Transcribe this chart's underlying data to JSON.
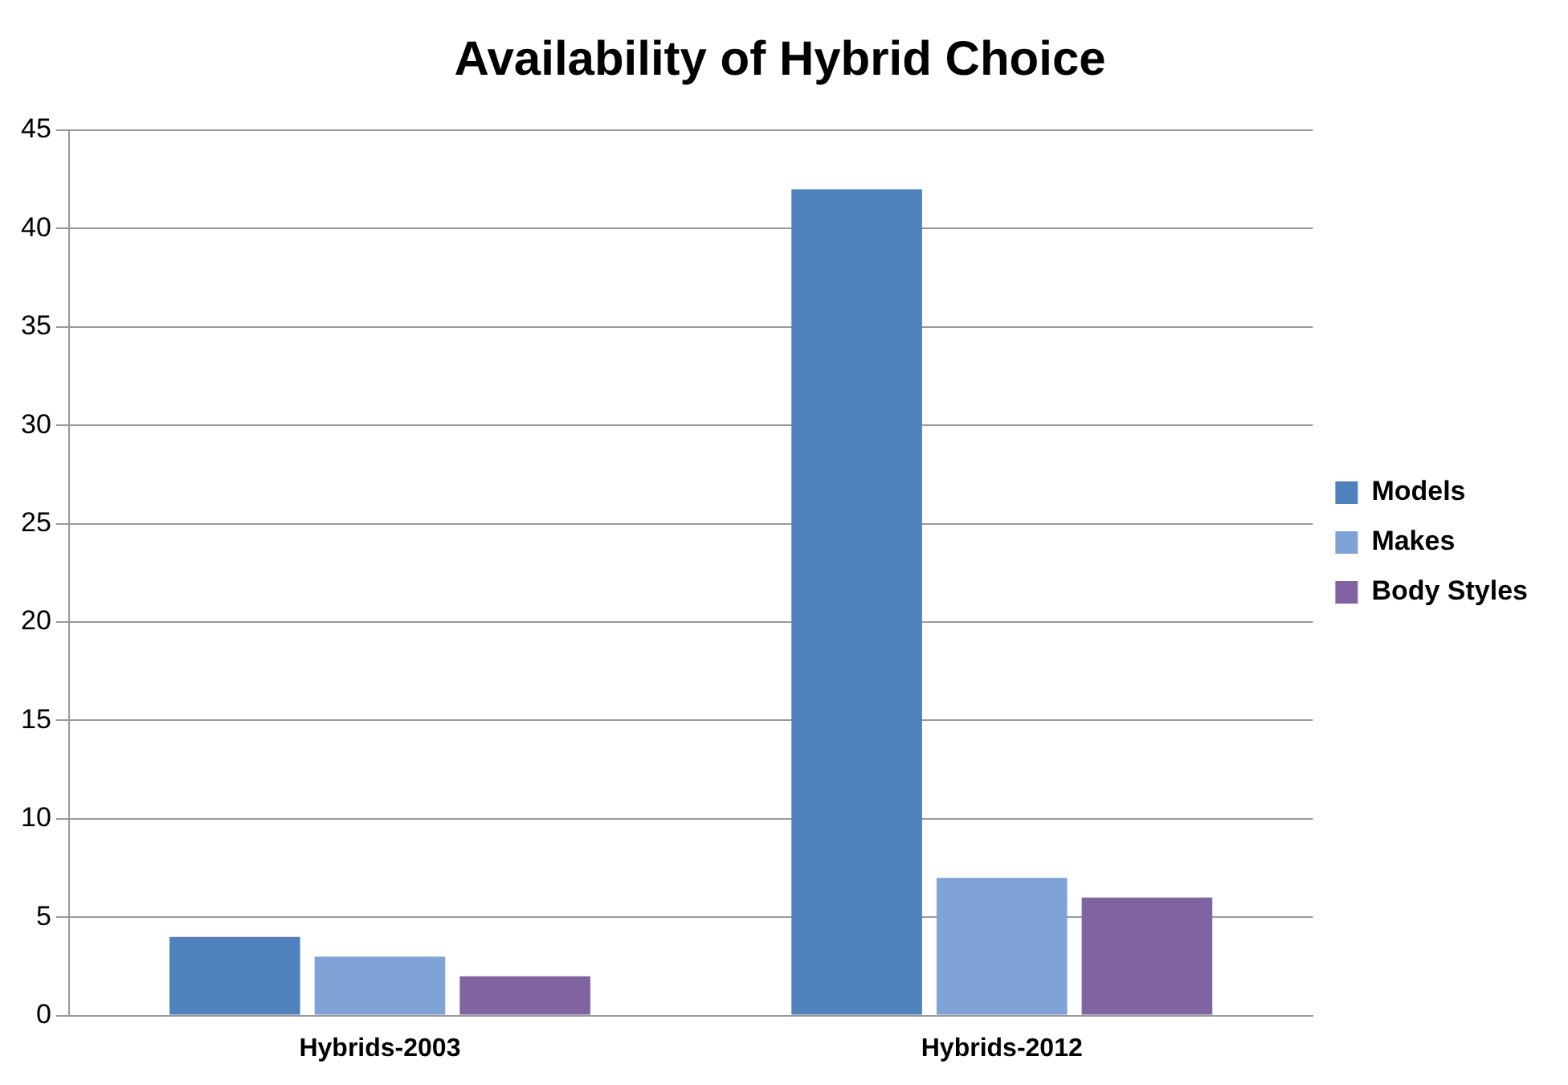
{
  "chart_data": {
    "type": "bar",
    "title": "Availability of Hybrid Choice",
    "categories": [
      "Hybrids-2003",
      "Hybrids-2012"
    ],
    "series": [
      {
        "name": "Models",
        "color": "#4f81bd",
        "values": [
          4,
          42
        ]
      },
      {
        "name": "Makes",
        "color": "#7fa3d6",
        "values": [
          3,
          7
        ]
      },
      {
        "name": "Body Styles",
        "color": "#8064a2",
        "values": [
          2,
          6
        ]
      }
    ],
    "ylim": [
      0,
      45
    ],
    "yticks": [
      0,
      5,
      10,
      15,
      20,
      25,
      30,
      35,
      40,
      45
    ],
    "grid": "y",
    "legend": "right"
  }
}
